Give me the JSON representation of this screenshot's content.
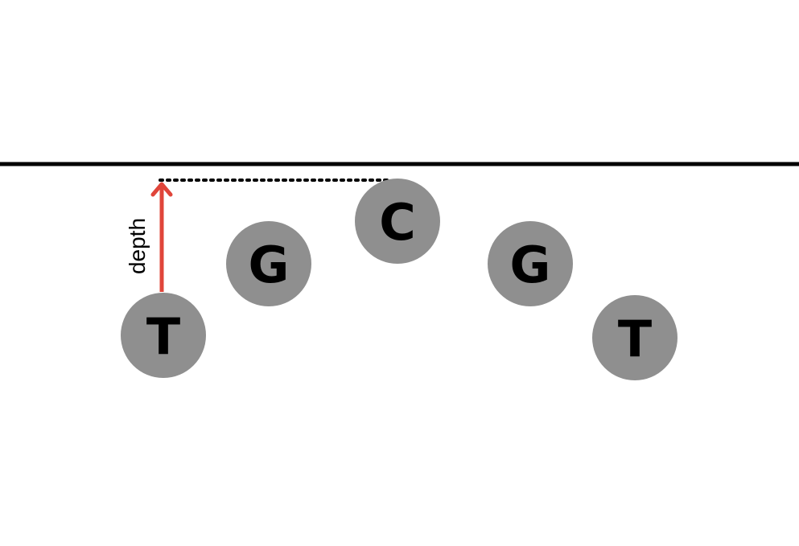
{
  "colors": {
    "background": "#ffffff",
    "surface_line": "#000000",
    "node_fill": "#8f8f8f",
    "node_letter": "#000000",
    "depth_arrow": "#e0453a",
    "reference_line": "#000000"
  },
  "nodes": [
    {
      "letter": "T"
    },
    {
      "letter": "G"
    },
    {
      "letter": "C"
    },
    {
      "letter": "G"
    },
    {
      "letter": "T"
    }
  ],
  "depth_label": "depth"
}
